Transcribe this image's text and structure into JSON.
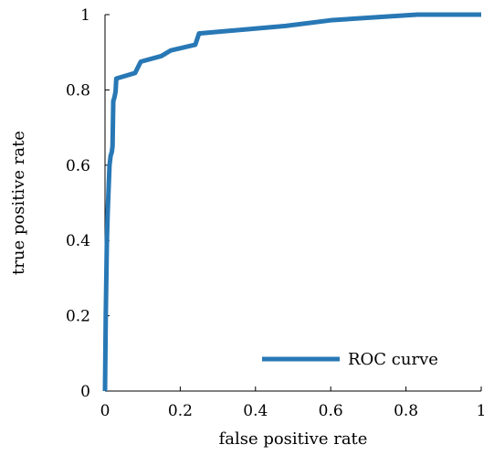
{
  "chart_data": {
    "type": "line",
    "title": "",
    "xlabel": "false positive rate",
    "ylabel": "true positive rate",
    "xlim": [
      0,
      1
    ],
    "ylim": [
      0,
      1
    ],
    "xticks": [
      0,
      0.2,
      0.4,
      0.6,
      0.8,
      1
    ],
    "yticks": [
      0,
      0.2,
      0.4,
      0.6,
      0.8,
      1
    ],
    "xtick_labels": [
      "0",
      "0.2",
      "0.4",
      "0.6",
      "0.8",
      "1"
    ],
    "ytick_labels": [
      "0",
      "0.2",
      "0.4",
      "0.6",
      "0.8",
      "1"
    ],
    "grid": false,
    "legend": {
      "position": "bottom-right",
      "entries": [
        "ROC curve"
      ]
    },
    "series": [
      {
        "name": "ROC curve",
        "color": "#2878b5",
        "x": [
          0,
          0.002,
          0.005,
          0.007,
          0.01,
          0.012,
          0.015,
          0.018,
          0.02,
          0.022,
          0.025,
          0.028,
          0.03,
          0.08,
          0.095,
          0.15,
          0.175,
          0.24,
          0.25,
          0.48,
          0.6,
          0.72,
          0.83,
          1.0
        ],
        "y": [
          0,
          0.2,
          0.4,
          0.47,
          0.55,
          0.6,
          0.625,
          0.635,
          0.65,
          0.77,
          0.78,
          0.795,
          0.83,
          0.845,
          0.875,
          0.89,
          0.905,
          0.92,
          0.95,
          0.97,
          0.985,
          0.993,
          1.0,
          1.0
        ]
      }
    ]
  }
}
